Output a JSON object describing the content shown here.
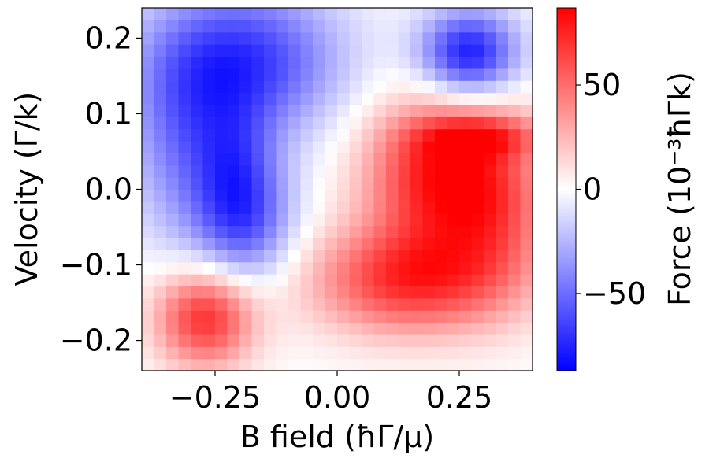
{
  "chart_data": {
    "type": "heatmap",
    "title": "",
    "xlabel": "B field (ħΓ/μ)",
    "ylabel": "Velocity (Γ/k)",
    "colorbar_label": "Force (10⁻³ħΓk)",
    "colormap": "bwr",
    "colormap_colors": {
      "low": "#0000ff",
      "mid": "#ffffff",
      "high": "#ff0000"
    },
    "xlim": [
      -0.4,
      0.4
    ],
    "ylim": [
      -0.24,
      0.24
    ],
    "clim": [
      -87,
      87
    ],
    "x_ticks": [
      -0.25,
      0.0,
      0.25
    ],
    "x_tick_labels": [
      "−0.25",
      "0.00",
      "0.25"
    ],
    "y_ticks": [
      -0.2,
      -0.1,
      0.0,
      0.1,
      0.2
    ],
    "y_tick_labels": [
      "−0.2",
      "−0.1",
      "0.0",
      "0.1",
      "0.2"
    ],
    "colorbar_ticks": [
      -50,
      0,
      50
    ],
    "colorbar_tick_labels": [
      "−50",
      "0",
      "50"
    ],
    "grid": {
      "nx": 32,
      "ny": 30
    },
    "features": [
      {
        "x": -0.2,
        "y": 0.17,
        "sx": 0.14,
        "sy": 0.07,
        "value": -70
      },
      {
        "x": -0.19,
        "y": -0.04,
        "sx": 0.07,
        "sy": 0.06,
        "value": -55
      },
      {
        "x": -0.32,
        "y": 0.05,
        "sx": 0.08,
        "sy": 0.09,
        "value": -35
      },
      {
        "x": -0.21,
        "y": 0.04,
        "sx": 0.06,
        "sy": 0.06,
        "value": -30
      },
      {
        "x": 0.27,
        "y": 0.18,
        "sx": 0.07,
        "sy": 0.04,
        "value": -80
      },
      {
        "x": -0.27,
        "y": -0.17,
        "sx": 0.07,
        "sy": 0.045,
        "value": 72
      },
      {
        "x": 0.2,
        "y": 0.02,
        "sx": 0.1,
        "sy": 0.07,
        "value": 75
      },
      {
        "x": 0.15,
        "y": -0.12,
        "sx": 0.14,
        "sy": 0.05,
        "value": 70
      },
      {
        "x": 0.33,
        "y": -0.02,
        "sx": 0.08,
        "sy": 0.08,
        "value": 45
      },
      {
        "x": 0.3,
        "y": 0.07,
        "sx": 0.09,
        "sy": 0.02,
        "value": 40
      }
    ]
  }
}
